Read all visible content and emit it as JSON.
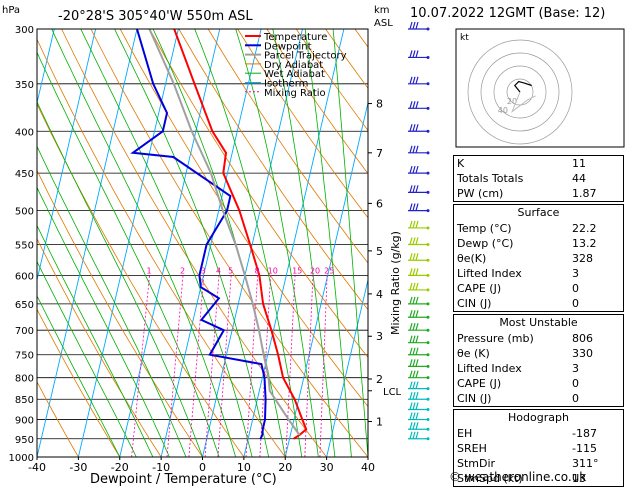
{
  "header": {
    "title": "-20°28'S  305°40'W  550m  ASL",
    "date": "10.07.2022  12GMT  (Base: 12)",
    "hpa_label": "hPa",
    "km_label": "km",
    "asl_label": "ASL"
  },
  "chart_data": {
    "type": "line",
    "title": "-20°28'S  305°40'W  550m  ASL",
    "xlabel": "Dewpoint / Temperature (°C)",
    "ylabel": "hPa",
    "xlim": [
      -40,
      40
    ],
    "ylim": [
      1000,
      300
    ],
    "x_ticks": [
      "-40",
      "-30",
      "-20",
      "-10",
      "0",
      "10",
      "20",
      "30",
      "40"
    ],
    "x_tick_values": [
      -40,
      -30,
      -20,
      -10,
      0,
      10,
      20,
      30,
      40
    ],
    "p_ticks": [
      300,
      350,
      400,
      450,
      500,
      550,
      600,
      650,
      700,
      750,
      800,
      850,
      900,
      950,
      1000
    ],
    "km_ticks": [
      {
        "label": "8",
        "p": 370
      },
      {
        "label": "7",
        "p": 425
      },
      {
        "label": "6",
        "p": 490
      },
      {
        "label": "5",
        "p": 560
      },
      {
        "label": "4",
        "p": 632
      },
      {
        "label": "3",
        "p": 712
      },
      {
        "label": "2",
        "p": 803
      },
      {
        "label": "1",
        "p": 905
      }
    ],
    "lcl": {
      "label": "LCL",
      "p": 830
    },
    "mixing_ratio_axis_label": "Mixing Ratio (g/kg)",
    "mixing_ratio_labels": [
      "1",
      "2",
      "3",
      "4",
      "5",
      "8",
      "10",
      "15",
      "20",
      "25"
    ],
    "mixing_ratio_values": [
      1,
      2,
      3,
      4,
      5,
      8,
      10,
      15,
      20,
      25
    ],
    "legend": [
      "Temperature",
      "Dewpoint",
      "Parcel Trajectory",
      "Dry Adiabat",
      "Wet Adiabat",
      "Isotherm",
      "Mixing Ratio"
    ],
    "legend_placement": "top-left",
    "series": [
      {
        "name": "Temperature",
        "color": "#ff0000",
        "points": [
          [
            950,
            21
          ],
          [
            940,
            22.2
          ],
          [
            925,
            23.5
          ],
          [
            900,
            22
          ],
          [
            850,
            19
          ],
          [
            800,
            15
          ],
          [
            750,
            12.5
          ],
          [
            700,
            9.5
          ],
          [
            650,
            6
          ],
          [
            600,
            3.5
          ],
          [
            550,
            -0.5
          ],
          [
            500,
            -5
          ],
          [
            450,
            -11
          ],
          [
            425,
            -11.5
          ],
          [
            400,
            -16
          ],
          [
            350,
            -23
          ],
          [
            300,
            -31
          ]
        ]
      },
      {
        "name": "Dewpoint",
        "color": "#0000dd",
        "points": [
          [
            950,
            13
          ],
          [
            940,
            13.2
          ],
          [
            925,
            13
          ],
          [
            900,
            13
          ],
          [
            850,
            12
          ],
          [
            800,
            10.5
          ],
          [
            770,
            9
          ],
          [
            750,
            -4
          ],
          [
            700,
            -2
          ],
          [
            680,
            -8
          ],
          [
            640,
            -5
          ],
          [
            620,
            -10
          ],
          [
            600,
            -11
          ],
          [
            550,
            -11
          ],
          [
            500,
            -8
          ],
          [
            480,
            -8
          ],
          [
            430,
            -24
          ],
          [
            425,
            -34
          ],
          [
            400,
            -28
          ],
          [
            380,
            -28
          ],
          [
            350,
            -33
          ],
          [
            300,
            -40
          ]
        ]
      },
      {
        "name": "Parcel Trajectory",
        "color": "#a0a0a0",
        "points": [
          [
            940,
            22.2
          ],
          [
            900,
            18.7
          ],
          [
            830,
            12.5
          ],
          [
            800,
            11.5
          ],
          [
            750,
            9
          ],
          [
            700,
            6.5
          ],
          [
            650,
            3.5
          ],
          [
            600,
            0
          ],
          [
            550,
            -4
          ],
          [
            500,
            -9
          ],
          [
            450,
            -14
          ],
          [
            400,
            -21
          ],
          [
            350,
            -28
          ],
          [
            300,
            -37
          ]
        ]
      }
    ],
    "wind_barbs_color": "#2222cc",
    "grid": true,
    "colors": {
      "isotherm": "#00aaff",
      "dry_adiabat": "#e07800",
      "wet_adiabat": "#00b000",
      "mixing_ratio": "#ff00aa"
    }
  },
  "hodograph": {
    "label": "kt",
    "ring_labels": [
      "20",
      "40"
    ],
    "points": [
      [
        0,
        0
      ],
      [
        -4,
        5
      ],
      [
        -1,
        8
      ],
      [
        3,
        7
      ],
      [
        9,
        5
      ]
    ],
    "ghost_points": [
      [
        0,
        0
      ],
      [
        -6,
        -15
      ],
      [
        6,
        -6
      ],
      [
        12,
        -3
      ]
    ]
  },
  "indices": [
    {
      "label": "K",
      "value": "11"
    },
    {
      "label": "Totals Totals",
      "value": "44"
    },
    {
      "label": "PW (cm)",
      "value": "1.87"
    }
  ],
  "surface": {
    "title": "Surface",
    "rows": [
      {
        "label": "Temp (°C)",
        "value": "22.2"
      },
      {
        "label": "Dewp (°C)",
        "value": "13.2"
      },
      {
        "label": "θe(K)",
        "value": "328"
      },
      {
        "label": "Lifted Index",
        "value": "3"
      },
      {
        "label": "CAPE (J)",
        "value": "0"
      },
      {
        "label": "CIN (J)",
        "value": "0"
      }
    ]
  },
  "most_unstable": {
    "title": "Most Unstable",
    "rows": [
      {
        "label": "Pressure (mb)",
        "value": "806"
      },
      {
        "label": "θe (K)",
        "value": "330"
      },
      {
        "label": "Lifted Index",
        "value": "3"
      },
      {
        "label": "CAPE (J)",
        "value": "0"
      },
      {
        "label": "CIN (J)",
        "value": "0"
      }
    ]
  },
  "hodograph_table": {
    "title": "Hodograph",
    "rows": [
      {
        "label": "EH",
        "value": "-187"
      },
      {
        "label": "SREH",
        "value": "-115"
      },
      {
        "label": "StmDir",
        "value": "311°"
      },
      {
        "label": "StmSpd (kt)",
        "value": "13"
      }
    ]
  },
  "footer": {
    "credit": "© weatheronline.co.uk"
  }
}
